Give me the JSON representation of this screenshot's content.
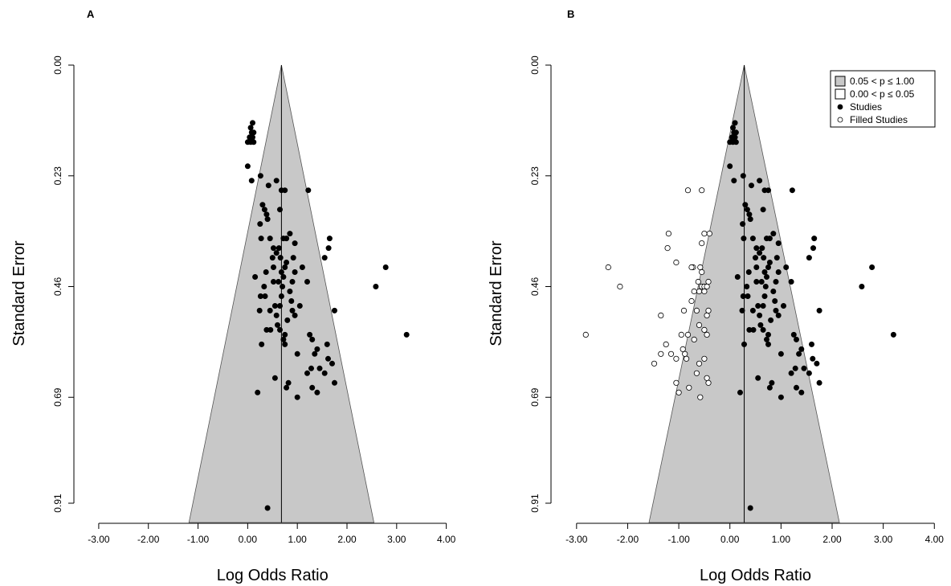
{
  "chart_data": [
    {
      "type": "scatter",
      "panel_label": "A",
      "xlabel": "Log Odds Ratio",
      "ylabel": "Standard Error",
      "xlim": [
        -3.5,
        4.2
      ],
      "ylim": [
        0,
        0.925
      ],
      "y_reversed": true,
      "x_ticks": [
        "-3.00",
        "-2.00",
        "-1.00",
        "0.00",
        "1.00",
        "2.00",
        "3.00",
        "4.00"
      ],
      "y_ticks": [
        "0.00",
        "0.23",
        "0.46",
        "0.69",
        "0.91"
      ],
      "funnel": {
        "center": 0.68,
        "region_fill": "#c8c8c8"
      },
      "series": [
        {
          "name": "Studies",
          "fill": "#000000",
          "points": [
            [
              0.1,
              0.12
            ],
            [
              0.06,
              0.13
            ],
            [
              0.08,
              0.14
            ],
            [
              0.12,
              0.14
            ],
            [
              0.04,
              0.15
            ],
            [
              0.1,
              0.15
            ],
            [
              0.0,
              0.16
            ],
            [
              0.12,
              0.16
            ],
            [
              0.06,
              0.16
            ],
            [
              0.0,
              0.21
            ],
            [
              0.08,
              0.24
            ],
            [
              0.26,
              0.23
            ],
            [
              0.42,
              0.25
            ],
            [
              0.3,
              0.29
            ],
            [
              0.34,
              0.3
            ],
            [
              0.38,
              0.31
            ],
            [
              0.4,
              0.32
            ],
            [
              0.25,
              0.33
            ],
            [
              0.27,
              0.36
            ],
            [
              0.52,
              0.38
            ],
            [
              0.58,
              0.39
            ],
            [
              0.45,
              0.36
            ],
            [
              0.5,
              0.4
            ],
            [
              0.37,
              0.43
            ],
            [
              0.33,
              0.46
            ],
            [
              0.35,
              0.48
            ],
            [
              0.26,
              0.48
            ],
            [
              0.24,
              0.51
            ],
            [
              0.45,
              0.51
            ],
            [
              0.38,
              0.55
            ],
            [
              0.46,
              0.55
            ],
            [
              0.28,
              0.58
            ],
            [
              0.52,
              0.42
            ],
            [
              0.52,
              0.45
            ],
            [
              0.55,
              0.5
            ],
            [
              0.6,
              0.54
            ],
            [
              0.63,
              0.38
            ],
            [
              0.66,
              0.4
            ],
            [
              0.68,
              0.43
            ],
            [
              0.72,
              0.44
            ],
            [
              0.75,
              0.42
            ],
            [
              0.78,
              0.41
            ],
            [
              0.85,
              0.47
            ],
            [
              0.88,
              0.49
            ],
            [
              0.9,
              0.45
            ],
            [
              0.8,
              0.53
            ],
            [
              0.75,
              0.56
            ],
            [
              0.7,
              0.46
            ],
            [
              0.65,
              0.5
            ],
            [
              0.72,
              0.57
            ],
            [
              0.9,
              0.51
            ],
            [
              0.95,
              0.52
            ],
            [
              0.75,
              0.58
            ],
            [
              1.0,
              0.6
            ],
            [
              1.05,
              0.5
            ],
            [
              0.95,
              0.43
            ],
            [
              0.92,
              0.4
            ],
            [
              1.1,
              0.42
            ],
            [
              1.2,
              0.45
            ],
            [
              1.25,
              0.56
            ],
            [
              1.3,
              0.57
            ],
            [
              1.35,
              0.6
            ],
            [
              1.28,
              0.63
            ],
            [
              1.4,
              0.59
            ],
            [
              1.45,
              0.63
            ],
            [
              1.55,
              0.64
            ],
            [
              1.6,
              0.58
            ],
            [
              1.62,
              0.61
            ],
            [
              1.7,
              0.62
            ],
            [
              1.75,
              0.66
            ],
            [
              1.63,
              0.38
            ],
            [
              1.65,
              0.36
            ],
            [
              1.55,
              0.4
            ],
            [
              1.75,
              0.51
            ],
            [
              1.2,
              0.64
            ],
            [
              1.3,
              0.67
            ],
            [
              1.4,
              0.68
            ],
            [
              0.78,
              0.67
            ],
            [
              0.82,
              0.66
            ],
            [
              1.0,
              0.69
            ],
            [
              0.55,
              0.65
            ],
            [
              0.2,
              0.68
            ],
            [
              0.62,
              0.45
            ],
            [
              0.68,
              0.48
            ],
            [
              0.58,
              0.52
            ],
            [
              0.65,
              0.55
            ],
            [
              0.85,
              0.35
            ],
            [
              0.95,
              0.37
            ],
            [
              0.78,
              0.36
            ],
            [
              0.72,
              0.36
            ],
            [
              0.65,
              0.3
            ],
            [
              0.68,
              0.26
            ],
            [
              0.75,
              0.26
            ],
            [
              0.58,
              0.24
            ],
            [
              1.22,
              0.26
            ],
            [
              0.15,
              0.44
            ],
            [
              2.58,
              0.46
            ],
            [
              2.78,
              0.42
            ],
            [
              3.2,
              0.56
            ],
            [
              0.4,
              0.92
            ]
          ]
        }
      ]
    },
    {
      "type": "scatter",
      "panel_label": "B",
      "xlabel": "Log Odds Ratio",
      "ylabel": "Standard Error",
      "xlim": [
        -3.5,
        4.2
      ],
      "ylim": [
        0,
        0.925
      ],
      "y_reversed": true,
      "x_ticks": [
        "-3.00",
        "-2.00",
        "-1.00",
        "0.00",
        "1.00",
        "2.00",
        "3.00",
        "4.00"
      ],
      "y_ticks": [
        "0.00",
        "0.23",
        "0.46",
        "0.69",
        "0.91"
      ],
      "funnel": {
        "center": 0.28,
        "region_fill": "#c8c8c8"
      },
      "legend": {
        "position": "top-right",
        "entries": [
          {
            "label": "0.05 < p ≤ 1.00",
            "symbol": "box",
            "fill": "#c8c8c8"
          },
          {
            "label": "0.00 < p ≤ 0.05",
            "symbol": "box",
            "fill": "#ffffff"
          },
          {
            "label": "Studies",
            "symbol": "dot",
            "fill": "#000000"
          },
          {
            "label": "Filled Studies",
            "symbol": "dot",
            "fill": "#ffffff"
          }
        ]
      },
      "series": [
        {
          "name": "Studies",
          "fill": "#000000",
          "points": [
            [
              0.1,
              0.12
            ],
            [
              0.06,
              0.13
            ],
            [
              0.08,
              0.14
            ],
            [
              0.12,
              0.14
            ],
            [
              0.04,
              0.15
            ],
            [
              0.1,
              0.15
            ],
            [
              0.0,
              0.16
            ],
            [
              0.12,
              0.16
            ],
            [
              0.06,
              0.16
            ],
            [
              0.0,
              0.21
            ],
            [
              0.08,
              0.24
            ],
            [
              0.26,
              0.23
            ],
            [
              0.42,
              0.25
            ],
            [
              0.3,
              0.29
            ],
            [
              0.34,
              0.3
            ],
            [
              0.38,
              0.31
            ],
            [
              0.4,
              0.32
            ],
            [
              0.25,
              0.33
            ],
            [
              0.27,
              0.36
            ],
            [
              0.52,
              0.38
            ],
            [
              0.58,
              0.39
            ],
            [
              0.45,
              0.36
            ],
            [
              0.5,
              0.4
            ],
            [
              0.37,
              0.43
            ],
            [
              0.33,
              0.46
            ],
            [
              0.35,
              0.48
            ],
            [
              0.26,
              0.48
            ],
            [
              0.24,
              0.51
            ],
            [
              0.45,
              0.51
            ],
            [
              0.38,
              0.55
            ],
            [
              0.46,
              0.55
            ],
            [
              0.28,
              0.58
            ],
            [
              0.52,
              0.42
            ],
            [
              0.52,
              0.45
            ],
            [
              0.55,
              0.5
            ],
            [
              0.6,
              0.54
            ],
            [
              0.63,
              0.38
            ],
            [
              0.66,
              0.4
            ],
            [
              0.68,
              0.43
            ],
            [
              0.72,
              0.44
            ],
            [
              0.75,
              0.42
            ],
            [
              0.78,
              0.41
            ],
            [
              0.85,
              0.47
            ],
            [
              0.88,
              0.49
            ],
            [
              0.9,
              0.45
            ],
            [
              0.8,
              0.53
            ],
            [
              0.75,
              0.56
            ],
            [
              0.7,
              0.46
            ],
            [
              0.65,
              0.5
            ],
            [
              0.72,
              0.57
            ],
            [
              0.9,
              0.51
            ],
            [
              0.95,
              0.52
            ],
            [
              0.75,
              0.58
            ],
            [
              1.0,
              0.6
            ],
            [
              1.05,
              0.5
            ],
            [
              0.95,
              0.43
            ],
            [
              0.92,
              0.4
            ],
            [
              1.1,
              0.42
            ],
            [
              1.2,
              0.45
            ],
            [
              1.25,
              0.56
            ],
            [
              1.3,
              0.57
            ],
            [
              1.35,
              0.6
            ],
            [
              1.28,
              0.63
            ],
            [
              1.4,
              0.59
            ],
            [
              1.45,
              0.63
            ],
            [
              1.55,
              0.64
            ],
            [
              1.6,
              0.58
            ],
            [
              1.62,
              0.61
            ],
            [
              1.7,
              0.62
            ],
            [
              1.75,
              0.66
            ],
            [
              1.63,
              0.38
            ],
            [
              1.65,
              0.36
            ],
            [
              1.55,
              0.4
            ],
            [
              1.75,
              0.51
            ],
            [
              1.2,
              0.64
            ],
            [
              1.3,
              0.67
            ],
            [
              1.4,
              0.68
            ],
            [
              0.78,
              0.67
            ],
            [
              0.82,
              0.66
            ],
            [
              1.0,
              0.69
            ],
            [
              0.55,
              0.65
            ],
            [
              0.2,
              0.68
            ],
            [
              0.62,
              0.45
            ],
            [
              0.68,
              0.48
            ],
            [
              0.58,
              0.52
            ],
            [
              0.65,
              0.55
            ],
            [
              0.85,
              0.35
            ],
            [
              0.95,
              0.37
            ],
            [
              0.78,
              0.36
            ],
            [
              0.72,
              0.36
            ],
            [
              0.65,
              0.3
            ],
            [
              0.68,
              0.26
            ],
            [
              0.75,
              0.26
            ],
            [
              0.58,
              0.24
            ],
            [
              1.22,
              0.26
            ],
            [
              0.15,
              0.44
            ],
            [
              2.58,
              0.46
            ],
            [
              2.78,
              0.42
            ],
            [
              3.2,
              0.56
            ],
            [
              0.4,
              0.92
            ]
          ]
        },
        {
          "name": "Filled Studies",
          "fill": "#ffffff",
          "points": [
            [
              -0.82,
              0.26
            ],
            [
              -0.55,
              0.26
            ],
            [
              -1.2,
              0.35
            ],
            [
              -1.22,
              0.38
            ],
            [
              -1.05,
              0.41
            ],
            [
              -0.72,
              0.42
            ],
            [
              -0.58,
              0.42
            ],
            [
              -0.55,
              0.43
            ],
            [
              -0.62,
              0.45
            ],
            [
              -0.55,
              0.46
            ],
            [
              -0.5,
              0.46
            ],
            [
              -0.45,
              0.46
            ],
            [
              -0.42,
              0.45
            ],
            [
              -0.6,
              0.47
            ],
            [
              -0.5,
              0.47
            ],
            [
              -0.7,
              0.47
            ],
            [
              -0.75,
              0.49
            ],
            [
              -0.9,
              0.51
            ],
            [
              -0.65,
              0.51
            ],
            [
              -0.45,
              0.52
            ],
            [
              -0.42,
              0.51
            ],
            [
              -1.35,
              0.52
            ],
            [
              -0.6,
              0.54
            ],
            [
              -0.5,
              0.55
            ],
            [
              -0.95,
              0.56
            ],
            [
              -0.82,
              0.56
            ],
            [
              -0.7,
              0.57
            ],
            [
              -0.45,
              0.56
            ],
            [
              -1.25,
              0.58
            ],
            [
              -1.35,
              0.6
            ],
            [
              -1.15,
              0.6
            ],
            [
              -1.05,
              0.61
            ],
            [
              -0.92,
              0.59
            ],
            [
              -0.88,
              0.6
            ],
            [
              -0.85,
              0.61
            ],
            [
              -0.6,
              0.62
            ],
            [
              -0.5,
              0.61
            ],
            [
              -1.48,
              0.62
            ],
            [
              -0.65,
              0.64
            ],
            [
              -0.45,
              0.65
            ],
            [
              -0.42,
              0.66
            ],
            [
              -0.8,
              0.67
            ],
            [
              -1.05,
              0.66
            ],
            [
              -1.0,
              0.68
            ],
            [
              -0.58,
              0.69
            ],
            [
              -2.82,
              0.56
            ],
            [
              -2.38,
              0.42
            ],
            [
              -2.15,
              0.46
            ],
            [
              -0.4,
              0.35
            ],
            [
              -0.5,
              0.35
            ],
            [
              -0.55,
              0.37
            ],
            [
              -0.75,
              0.42
            ]
          ]
        }
      ]
    }
  ]
}
